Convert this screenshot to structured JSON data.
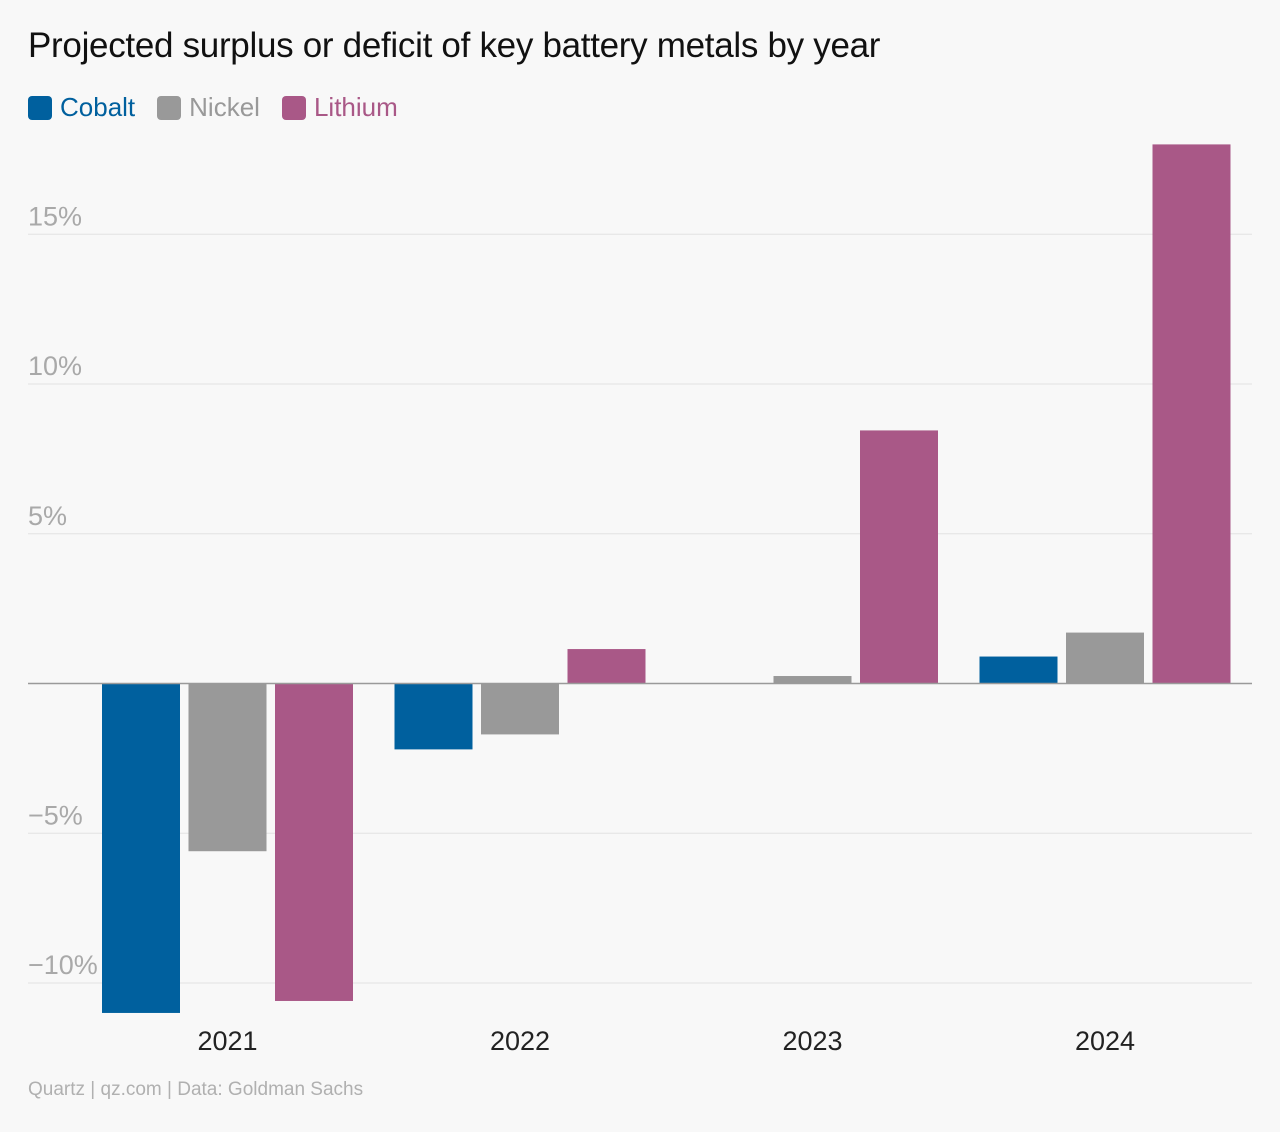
{
  "chart_data": {
    "type": "bar",
    "title": "Projected surplus or deficit of key battery metals by year",
    "categories": [
      "2021",
      "2022",
      "2023",
      "2024"
    ],
    "series": [
      {
        "name": "Cobalt",
        "color": "#00609e",
        "values": [
          -11.0,
          -2.2,
          0.0,
          0.9
        ]
      },
      {
        "name": "Nickel",
        "color": "#999999",
        "values": [
          -5.6,
          -1.7,
          0.25,
          1.7
        ]
      },
      {
        "name": "Lithium",
        "color": "#a95887",
        "values": [
          -10.6,
          1.15,
          8.45,
          18.0
        ]
      }
    ],
    "yticks": [
      -10,
      -5,
      5,
      10,
      15
    ],
    "ytick_labels": [
      "−10%",
      "−5%",
      "5%",
      "10%",
      "15%"
    ],
    "ylim": [
      -11.1,
      18.1
    ],
    "xlabel": "",
    "ylabel": "",
    "grid": true,
    "legend": "top-left"
  },
  "footer": "Quartz | qz.com | Data: Goldman Sachs"
}
